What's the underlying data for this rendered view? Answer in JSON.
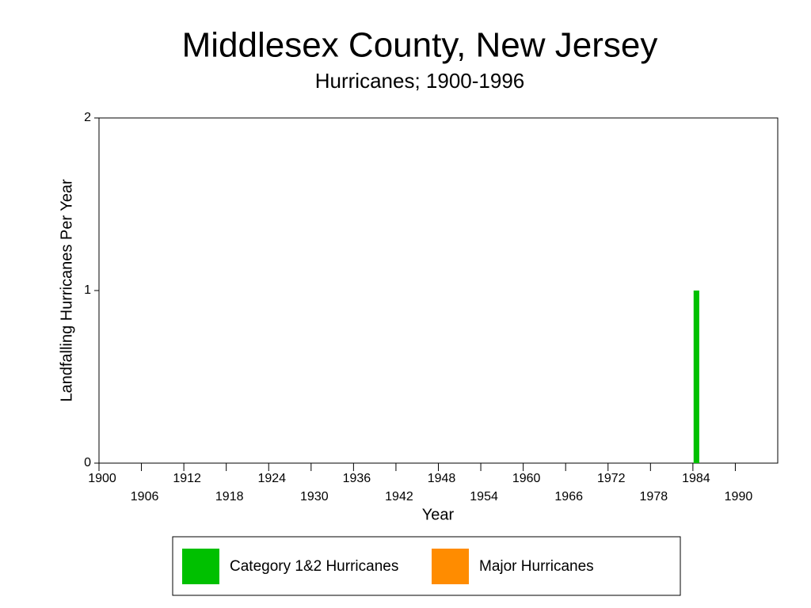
{
  "chart_data": {
    "type": "bar",
    "title": "Middlesex County, New Jersey",
    "subtitle": "Hurricanes;  1900-1996",
    "x_label": "Year",
    "y_label": "Landfalling Hurricanes Per Year",
    "x": [
      1984
    ],
    "series": [
      {
        "name": "Category 1&2 Hurricanes",
        "color": "#00c000",
        "values": [
          1
        ]
      },
      {
        "name": "Major Hurricanes",
        "color": "#ff8c00",
        "values": [
          0
        ]
      }
    ],
    "xlim": [
      1900,
      1996
    ],
    "xticks": [
      1900,
      1906,
      1912,
      1918,
      1924,
      1930,
      1936,
      1942,
      1948,
      1954,
      1960,
      1966,
      1972,
      1978,
      1984,
      1990
    ],
    "ylim": [
      0,
      2
    ],
    "yticks": [
      0,
      1,
      2
    ],
    "grid": false,
    "legend": "bottom"
  }
}
